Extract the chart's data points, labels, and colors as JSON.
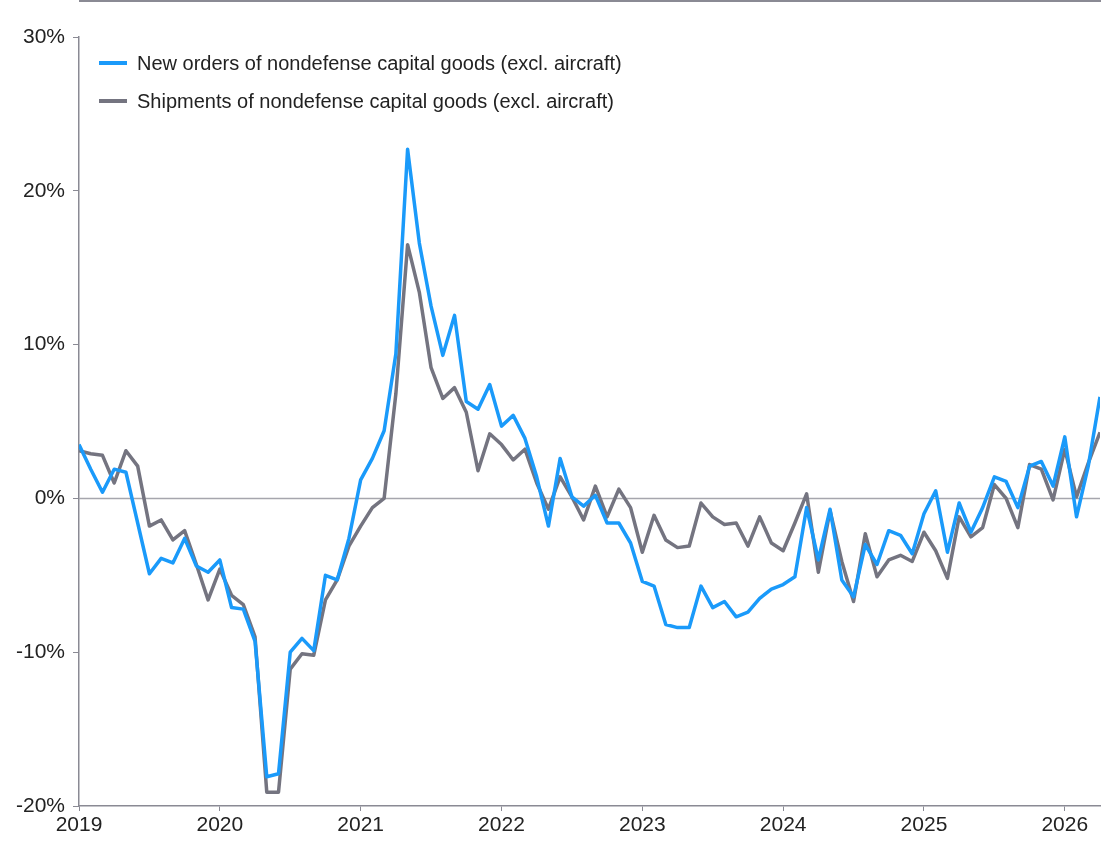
{
  "chart_data": {
    "type": "line",
    "legend": "top left",
    "xlim": [
      "2019-01",
      "2026-04"
    ],
    "xticks": [
      "2019",
      "2020",
      "2021",
      "2022",
      "2023",
      "2024",
      "2025",
      "2026"
    ],
    "ylim": [
      -20,
      30
    ],
    "yticks": [
      {
        "value": -20,
        "label": "-20%"
      },
      {
        "value": -10,
        "label": "-10%"
      },
      {
        "value": 0,
        "label": "0%"
      },
      {
        "value": 10,
        "label": "10%"
      },
      {
        "value": 20,
        "label": "20%"
      },
      {
        "value": 30,
        "label": "30%"
      }
    ],
    "x": [
      "2019-01",
      "2019-02",
      "2019-03",
      "2019-04",
      "2019-05",
      "2019-06",
      "2019-07",
      "2019-08",
      "2019-09",
      "2019-10",
      "2019-11",
      "2019-12",
      "2020-01",
      "2020-02",
      "2020-03",
      "2020-04",
      "2020-05",
      "2020-06",
      "2020-07",
      "2020-08",
      "2020-09",
      "2020-10",
      "2020-11",
      "2020-12",
      "2021-01",
      "2021-02",
      "2021-03",
      "2021-04",
      "2021-05",
      "2021-06",
      "2021-07",
      "2021-08",
      "2021-09",
      "2021-10",
      "2021-11",
      "2021-12",
      "2022-01",
      "2022-02",
      "2022-03",
      "2022-04",
      "2022-05",
      "2022-06",
      "2022-07",
      "2022-08",
      "2022-09",
      "2022-10",
      "2022-11",
      "2022-12",
      "2023-01",
      "2023-02",
      "2023-03",
      "2023-04",
      "2023-05",
      "2023-06",
      "2023-07",
      "2023-08",
      "2023-09",
      "2023-10",
      "2023-11",
      "2023-12",
      "2024-01",
      "2024-02",
      "2024-03",
      "2024-04",
      "2024-05",
      "2024-06",
      "2024-07",
      "2024-08",
      "2024-09",
      "2024-10",
      "2024-11",
      "2024-12",
      "2025-01",
      "2025-02",
      "2025-03",
      "2025-04",
      "2025-05",
      "2025-06",
      "2025-07",
      "2025-08",
      "2025-09",
      "2025-10",
      "2025-11",
      "2025-12",
      "2026-01",
      "2026-02",
      "2026-03",
      "2026-04"
    ],
    "ref_lines": [
      {
        "axis": "y",
        "value": 0,
        "color": "#a6a6ad"
      }
    ],
    "series": [
      {
        "name": "New orders of nondefense capital goods (excl. aircraft)",
        "color": "#1a9afa",
        "values": [
          3.5,
          1.9,
          0.4,
          1.9,
          1.7,
          -1.6,
          -4.9,
          -3.9,
          -4.2,
          -2.6,
          -4.4,
          -4.8,
          -4.0,
          -7.1,
          -7.2,
          -9.3,
          -18.1,
          -17.9,
          -10.0,
          -9.1,
          -9.9,
          -5.0,
          -5.3,
          -2.6,
          1.2,
          2.6,
          4.4,
          9.4,
          22.7,
          16.6,
          12.5,
          9.3,
          11.9,
          6.3,
          5.8,
          7.4,
          4.7,
          5.4,
          3.9,
          1.4,
          -1.8,
          2.6,
          0.1,
          -0.5,
          0.2,
          -1.6,
          -1.6,
          -2.9,
          -5.4,
          -5.7,
          -8.2,
          -8.4,
          -8.4,
          -5.7,
          -7.1,
          -6.7,
          -7.7,
          -7.4,
          -6.5,
          -5.9,
          -5.6,
          -5.1,
          -0.6,
          -4.0,
          -0.7,
          -5.3,
          -6.4,
          -3.0,
          -4.3,
          -2.1,
          -2.4,
          -3.6,
          -1.0,
          0.5,
          -3.5,
          -0.3,
          -2.2,
          -0.6,
          1.4,
          1.1,
          -0.6,
          2.1,
          2.4,
          0.8,
          4.0,
          -1.2,
          2.1,
          6.6
        ]
      },
      {
        "name": "Shipments of nondefense capital goods (excl. aircraft)",
        "color": "#747480",
        "values": [
          3.1,
          2.9,
          2.8,
          1.0,
          3.1,
          2.1,
          -1.8,
          -1.4,
          -2.7,
          -2.1,
          -4.3,
          -6.6,
          -4.6,
          -6.3,
          -6.9,
          -9.0,
          -19.1,
          -19.1,
          -11.1,
          -10.1,
          -10.2,
          -6.6,
          -5.3,
          -3.1,
          -1.8,
          -0.6,
          0.0,
          6.8,
          16.5,
          13.4,
          8.5,
          6.5,
          7.2,
          5.6,
          1.8,
          4.2,
          3.5,
          2.5,
          3.2,
          1.0,
          -0.7,
          1.4,
          0.1,
          -1.4,
          0.8,
          -1.2,
          0.6,
          -0.6,
          -3.5,
          -1.1,
          -2.7,
          -3.2,
          -3.1,
          -0.3,
          -1.2,
          -1.7,
          -1.6,
          -3.1,
          -1.2,
          -2.9,
          -3.4,
          -1.6,
          0.3,
          -4.8,
          -0.8,
          -4.1,
          -6.7,
          -2.3,
          -5.1,
          -4.0,
          -3.7,
          -4.1,
          -2.2,
          -3.4,
          -5.2,
          -1.2,
          -2.5,
          -1.9,
          0.9,
          0.0,
          -1.9,
          2.2,
          1.9,
          -0.1,
          3.2,
          0.1,
          2.3,
          4.3
        ]
      }
    ]
  }
}
